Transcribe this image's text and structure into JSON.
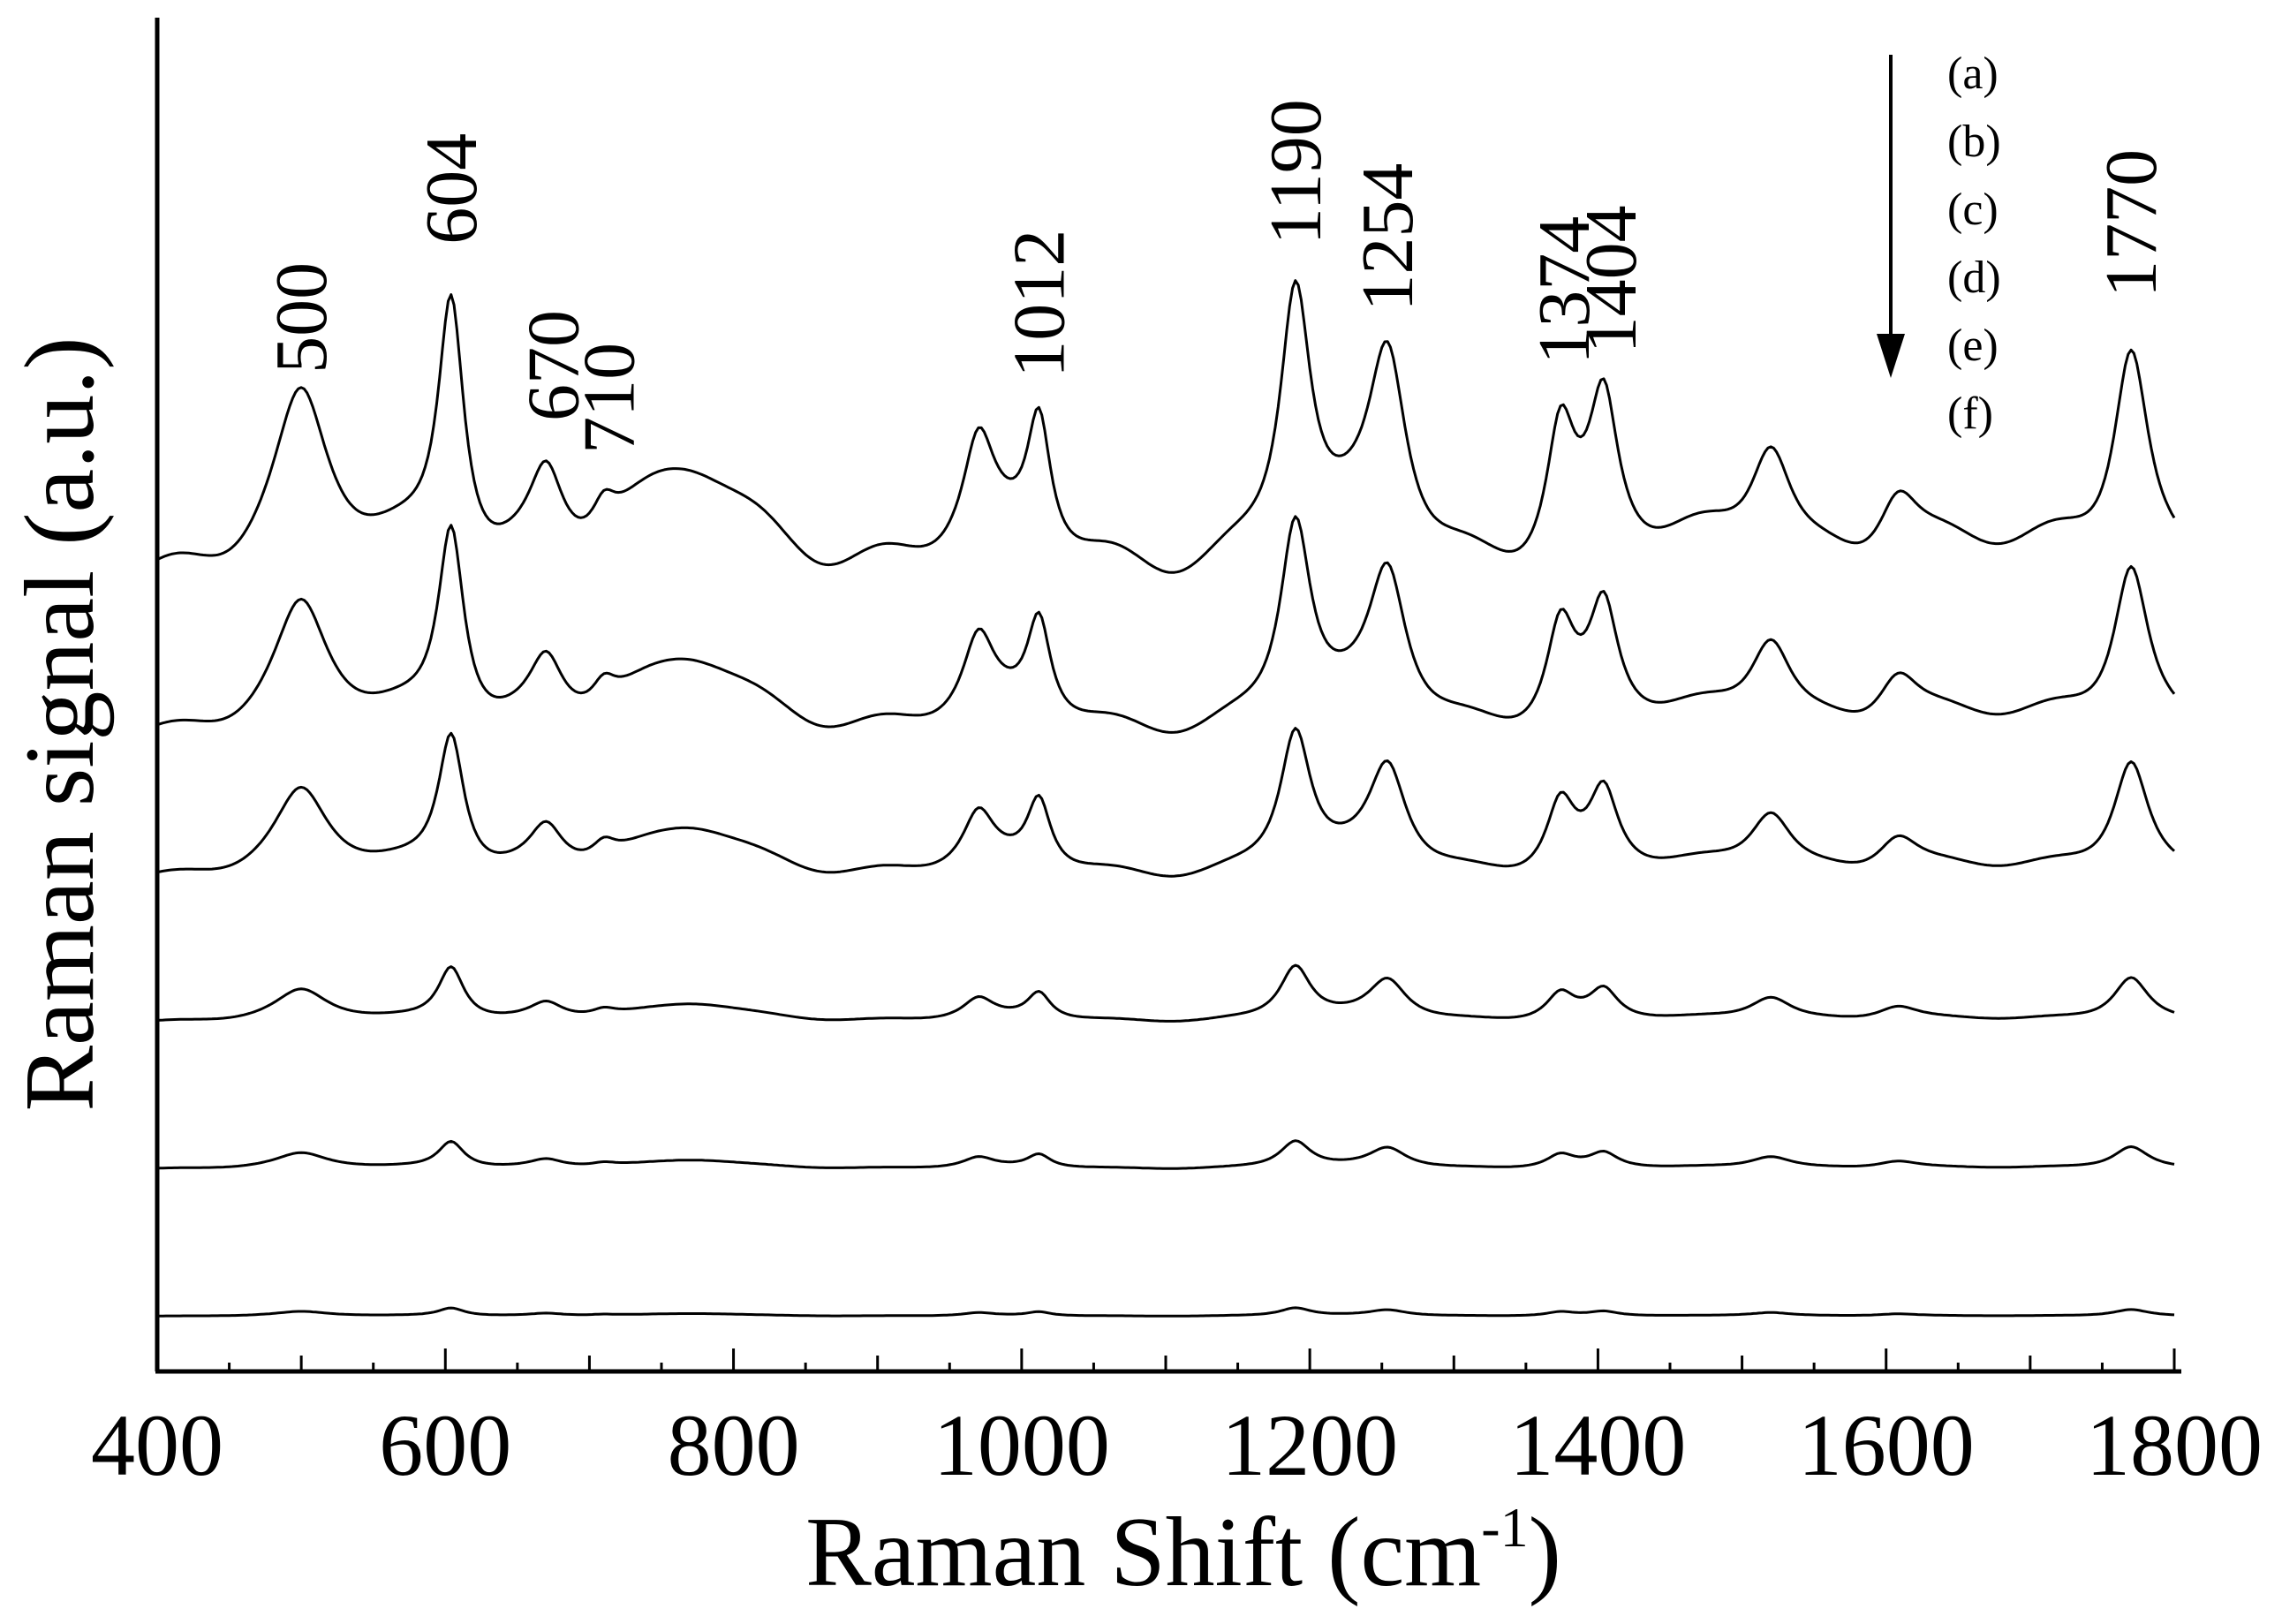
{
  "chart_data": {
    "type": "line",
    "title": "",
    "xlabel": "Raman Shift (cm",
    "xlabel_sup": "-1",
    "xlabel_close": ")",
    "ylabel": "Raman signal (a.u.)",
    "xlim": [
      400,
      1800
    ],
    "x_ticks": [
      "400",
      "600",
      "800",
      "1000",
      "1200",
      "1400",
      "1600",
      "1800"
    ],
    "legend": [
      "(a)",
      "(b)",
      "(c)",
      "(d)",
      "(e)",
      "(f)"
    ],
    "arrow_direction": "down",
    "peak_labels": [
      "500",
      "604",
      "670",
      "710",
      "1012",
      "1190",
      "1254",
      "1374",
      "1404",
      "1770"
    ],
    "peaks": [
      {
        "center": 500,
        "width": 22,
        "rel": 0.55
      },
      {
        "center": 604,
        "width": 11,
        "rel": 1.0
      },
      {
        "center": 670,
        "width": 14,
        "rel": 0.3
      },
      {
        "center": 710,
        "width": 10,
        "rel": 0.12
      },
      {
        "center": 775,
        "width": 45,
        "rel": 0.3
      },
      {
        "center": 970,
        "width": 13,
        "rel": 0.38
      },
      {
        "center": 1012,
        "width": 10,
        "rel": 0.5
      },
      {
        "center": 1190,
        "width": 13,
        "rel": 1.0
      },
      {
        "center": 1254,
        "width": 16,
        "rel": 0.75
      },
      {
        "center": 1374,
        "width": 12,
        "rel": 0.5
      },
      {
        "center": 1404,
        "width": 12,
        "rel": 0.55
      },
      {
        "center": 1520,
        "width": 18,
        "rel": 0.45
      },
      {
        "center": 1608,
        "width": 18,
        "rel": 0.28
      },
      {
        "center": 1770,
        "width": 15,
        "rel": 0.85
      }
    ],
    "series": [
      {
        "name": "(a)",
        "baseline": 2.2,
        "scale": 1.0
      },
      {
        "name": "(b)",
        "baseline": 1.75,
        "scale": 0.75
      },
      {
        "name": "(c)",
        "baseline": 1.35,
        "scale": 0.52
      },
      {
        "name": "(d)",
        "baseline": 0.95,
        "scale": 0.2
      },
      {
        "name": "(e)",
        "baseline": 0.55,
        "scale": 0.1
      },
      {
        "name": "(f)",
        "baseline": 0.15,
        "scale": 0.03
      }
    ],
    "ylim": [
      0,
      3.65
    ]
  }
}
